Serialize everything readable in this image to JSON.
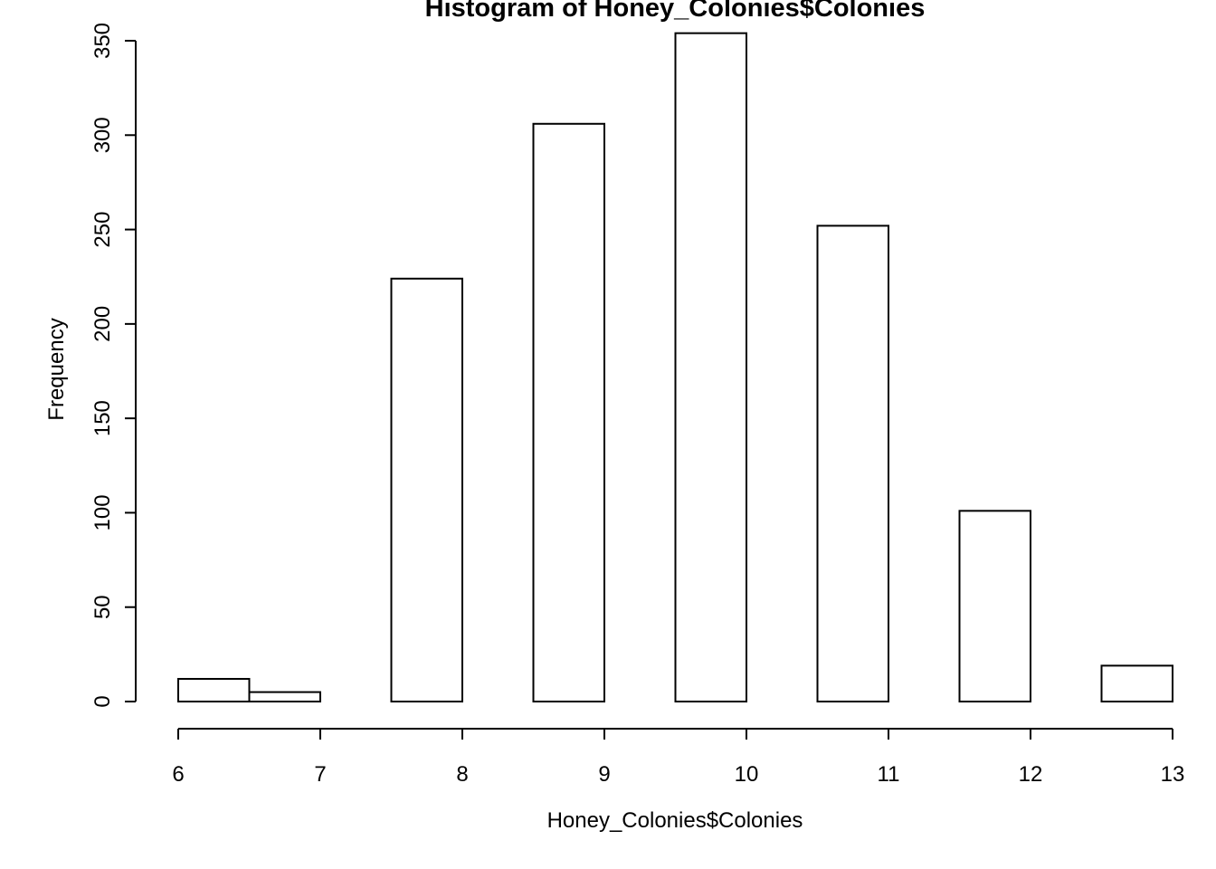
{
  "chart_data": {
    "type": "bar",
    "title": "Histogram of Honey_Colonies$Colonies",
    "xlabel": "Honey_Colonies$Colonies",
    "ylabel": "Frequency",
    "bins": [
      {
        "start": 6.0,
        "end": 6.5,
        "value": 12
      },
      {
        "start": 6.5,
        "end": 7.0,
        "value": 5
      },
      {
        "start": 7.0,
        "end": 7.5,
        "value": 0
      },
      {
        "start": 7.5,
        "end": 8.0,
        "value": 224
      },
      {
        "start": 8.0,
        "end": 8.5,
        "value": 0
      },
      {
        "start": 8.5,
        "end": 9.0,
        "value": 306
      },
      {
        "start": 9.0,
        "end": 9.5,
        "value": 0
      },
      {
        "start": 9.5,
        "end": 10.0,
        "value": 354
      },
      {
        "start": 10.0,
        "end": 10.5,
        "value": 0
      },
      {
        "start": 10.5,
        "end": 11.0,
        "value": 252
      },
      {
        "start": 11.0,
        "end": 11.5,
        "value": 0
      },
      {
        "start": 11.5,
        "end": 12.0,
        "value": 101
      },
      {
        "start": 12.0,
        "end": 12.5,
        "value": 0
      },
      {
        "start": 12.5,
        "end": 13.0,
        "value": 19
      }
    ],
    "xlim": [
      6,
      13
    ],
    "ylim": [
      0,
      350
    ],
    "xticks": [
      "6",
      "7",
      "8",
      "9",
      "10",
      "11",
      "12",
      "13"
    ],
    "yticks": [
      "0",
      "50",
      "100",
      "150",
      "200",
      "250",
      "300",
      "350"
    ],
    "grid": false,
    "colors": {
      "bar_fill": "#ffffff",
      "bar_stroke": "#000000"
    }
  }
}
